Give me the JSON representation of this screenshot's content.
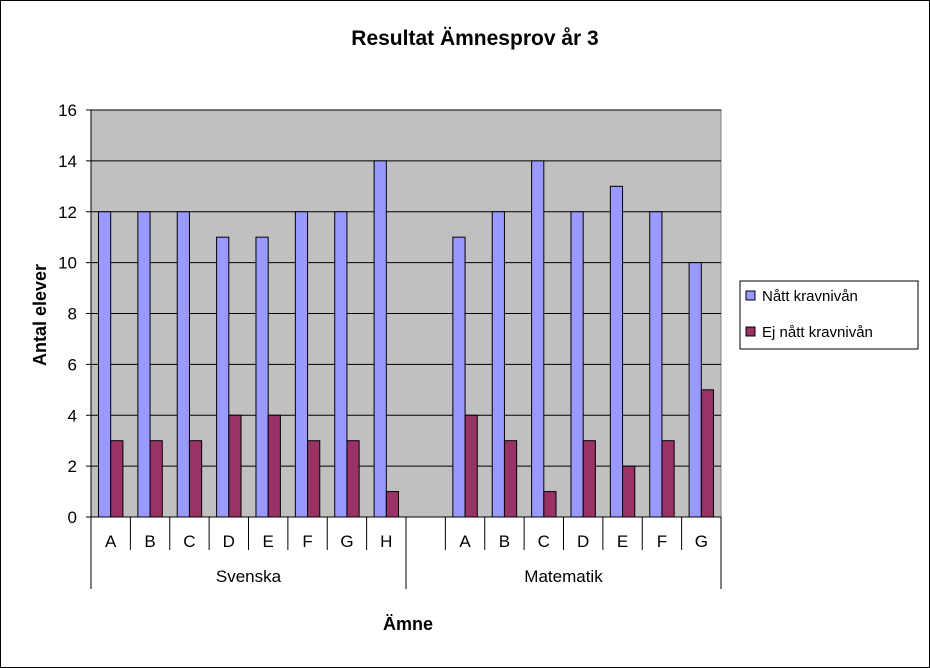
{
  "chart_data": {
    "type": "bar",
    "title": "Resultat Ämnesprov år 3",
    "xlabel": "Ämne",
    "ylabel": "Antal elever",
    "ylim": [
      0,
      16
    ],
    "ytick_step": 2,
    "yticks": [
      "0",
      "2",
      "4",
      "6",
      "8",
      "10",
      "12",
      "14",
      "16"
    ],
    "grid": true,
    "plot_background": "#c0c0c0",
    "legend_position": "right",
    "groups": [
      {
        "name": "Svenska",
        "categories": [
          "A",
          "B",
          "C",
          "D",
          "E",
          "F",
          "G",
          "H"
        ],
        "series": [
          {
            "name": "Nått kravnivån",
            "values": [
              12,
              12,
              12,
              11,
              11,
              12,
              12,
              14
            ]
          },
          {
            "name": "Ej nått kravnivån",
            "values": [
              3,
              3,
              3,
              4,
              4,
              3,
              3,
              1
            ]
          }
        ]
      },
      {
        "name": "Matematik",
        "categories": [
          "A",
          "B",
          "C",
          "D",
          "E",
          "F",
          "G"
        ],
        "series": [
          {
            "name": "Nått kravnivån",
            "values": [
              11,
              12,
              14,
              12,
              13,
              12,
              10
            ]
          },
          {
            "name": "Ej nått kravnivån",
            "values": [
              4,
              3,
              1,
              3,
              2,
              3,
              5
            ]
          }
        ]
      }
    ],
    "legend": [
      {
        "name": "Nått kravnivån",
        "color": "#9999ff"
      },
      {
        "name": "Ej nått kravnivån",
        "color": "#993366"
      }
    ]
  }
}
